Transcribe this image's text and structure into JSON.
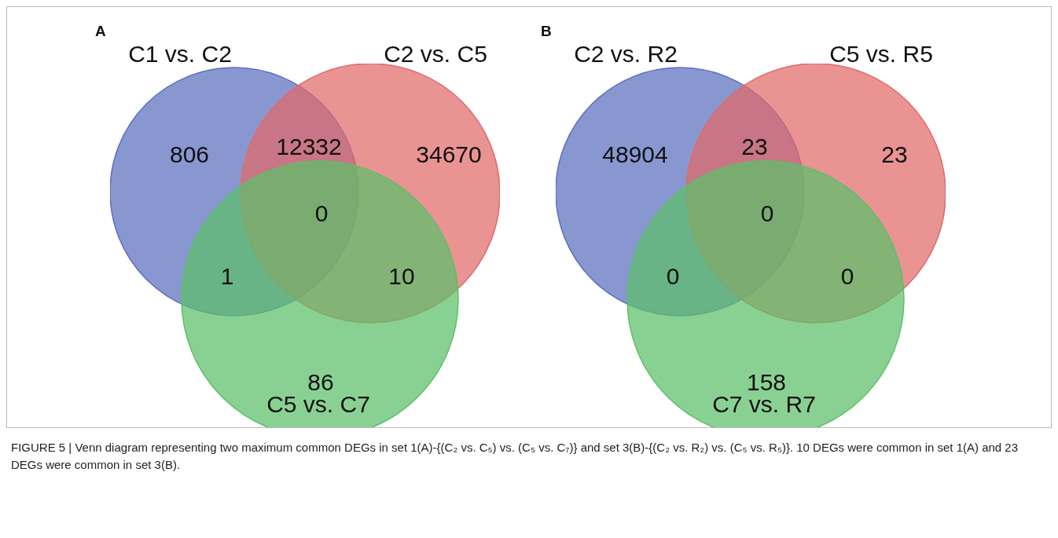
{
  "chart_data": [
    {
      "type": "other",
      "title": "A",
      "categories": [
        null,
        null,
        null,
        null,
        null,
        null,
        null
      ],
      "values": [
        806,
        12332,
        34670,
        0,
        1,
        10,
        86
      ],
      "data_labels": true,
      "annotations": [
        "C1 vs. C2",
        "C2 vs. C5",
        "C5 vs. C7",
        "FIGURE 5 | Venn diagram representing two maximum common DEGs in set 1(A)-{(C₂ vs. C₅) vs. (C₅ vs. C₇)} and set 3(B)-{(C₂ vs. R₂) vs. (C₅ vs. R₅)}. 10 DEGs were common in set 1(A) and 23 DEGs were common in set 3(B)."
      ]
    },
    {
      "type": "other",
      "title": "B",
      "categories": [
        null,
        null,
        null,
        null,
        null,
        null,
        null
      ],
      "values": [
        48904,
        23,
        23,
        0,
        0,
        0,
        158
      ],
      "data_labels": true,
      "annotations": [
        "C2 vs. R2",
        "C5 vs. R5",
        "C7 vs. R7"
      ]
    }
  ]
}
